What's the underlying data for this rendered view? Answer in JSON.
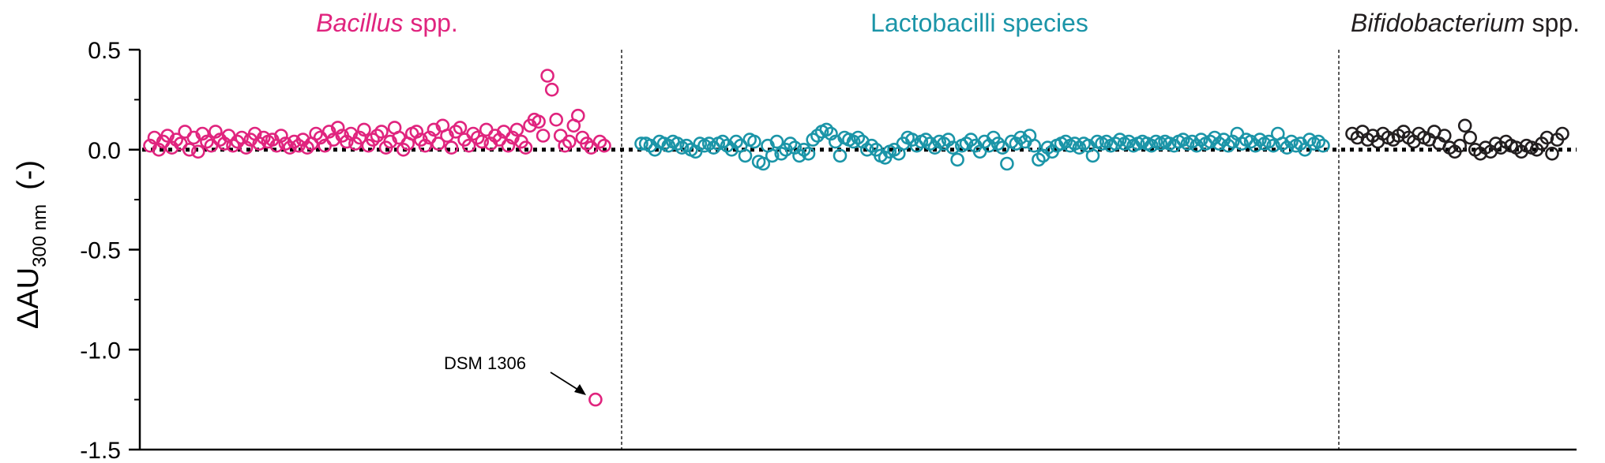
{
  "chart_data": {
    "type": "scatter",
    "ylabel_main": "ΔAU",
    "ylabel_sub": "300 nm",
    "ylabel_unit": "(-)",
    "ylim": [
      -1.5,
      0.5
    ],
    "yticks": [
      0.5,
      0.0,
      -0.5,
      -1.0,
      -1.5
    ],
    "ytick_labels": [
      "0.5",
      "0.0",
      "-0.5",
      "-1.0",
      "-1.5"
    ],
    "zero_line": true,
    "groups": [
      {
        "key": "bacillus",
        "title_italic": "Bacillus",
        "title_rest": " spp.",
        "color": "#e0247e",
        "values": [
          0.02,
          0.06,
          0.0,
          0.04,
          0.07,
          0.01,
          0.05,
          0.03,
          0.09,
          0.0,
          0.06,
          -0.01,
          0.08,
          0.04,
          0.02,
          0.09,
          0.05,
          0.03,
          0.07,
          0.02,
          0.04,
          0.06,
          0.01,
          0.05,
          0.08,
          0.03,
          0.06,
          0.04,
          0.05,
          0.02,
          0.07,
          0.03,
          0.01,
          0.04,
          0.02,
          0.05,
          0.01,
          0.03,
          0.08,
          0.06,
          0.02,
          0.09,
          0.05,
          0.11,
          0.07,
          0.04,
          0.08,
          0.03,
          0.06,
          0.1,
          0.02,
          0.05,
          0.07,
          0.09,
          0.01,
          0.04,
          0.11,
          0.06,
          0.0,
          0.03,
          0.08,
          0.09,
          0.05,
          0.02,
          0.06,
          0.1,
          0.03,
          0.12,
          0.07,
          0.01,
          0.09,
          0.11,
          0.05,
          0.02,
          0.08,
          0.06,
          0.04,
          0.1,
          0.03,
          0.07,
          0.05,
          0.09,
          0.02,
          0.06,
          0.1,
          0.04,
          0.01,
          0.12,
          0.15,
          0.14,
          0.07,
          0.37,
          0.3,
          0.15,
          0.07,
          0.02,
          0.04,
          0.12,
          0.17,
          0.06,
          0.03,
          0.01,
          -1.25,
          0.04,
          0.02
        ]
      },
      {
        "key": "lactobacilli",
        "title_italic": "",
        "title_rest": "Lactobacilli species",
        "color": "#1b95a8",
        "values": [
          0.03,
          0.03,
          0.02,
          0.0,
          0.04,
          0.03,
          0.02,
          0.04,
          0.03,
          0.01,
          0.02,
          0.0,
          -0.01,
          0.03,
          0.02,
          0.03,
          0.01,
          0.03,
          0.04,
          0.02,
          0.0,
          0.04,
          0.02,
          -0.03,
          0.05,
          0.04,
          -0.06,
          -0.07,
          0.02,
          -0.03,
          0.04,
          -0.02,
          0.0,
          0.03,
          0.01,
          -0.03,
          0.0,
          -0.02,
          0.05,
          0.07,
          0.09,
          0.1,
          0.08,
          0.04,
          -0.03,
          0.06,
          0.05,
          0.04,
          0.06,
          0.04,
          0.0,
          0.02,
          0.0,
          -0.03,
          -0.04,
          -0.01,
          0.0,
          -0.02,
          0.03,
          0.06,
          0.05,
          0.02,
          0.04,
          0.05,
          0.03,
          0.01,
          0.04,
          0.03,
          0.05,
          0.01,
          -0.05,
          0.02,
          0.03,
          0.05,
          0.02,
          -0.01,
          0.04,
          0.02,
          0.06,
          0.03,
          0.01,
          -0.07,
          0.04,
          0.03,
          0.06,
          0.04,
          0.07,
          0.02,
          -0.05,
          -0.03,
          0.01,
          -0.01,
          0.02,
          0.03,
          0.04,
          0.02,
          0.03,
          0.01,
          0.03,
          0.02,
          -0.03,
          0.04,
          0.03,
          0.04,
          0.02,
          0.03,
          0.05,
          0.03,
          0.04,
          0.02,
          0.03,
          0.04,
          0.03,
          0.02,
          0.04,
          0.03,
          0.04,
          0.03,
          0.02,
          0.04,
          0.05,
          0.03,
          0.04,
          0.02,
          0.05,
          0.03,
          0.04,
          0.06,
          0.03,
          0.05,
          0.02,
          0.04,
          0.08,
          0.03,
          0.05,
          0.04,
          0.02,
          0.05,
          0.03,
          0.04,
          0.02,
          0.08,
          0.03,
          0.01,
          0.04,
          0.02,
          0.03,
          0.0,
          0.05,
          0.03,
          0.04,
          0.02
        ]
      },
      {
        "key": "bifidobacterium",
        "title_italic": "Bifidobacterium",
        "title_rest": " spp.",
        "color": "#231f20",
        "values": [
          0.08,
          0.06,
          0.09,
          0.05,
          0.07,
          0.04,
          0.08,
          0.06,
          0.05,
          0.07,
          0.09,
          0.06,
          0.04,
          0.08,
          0.06,
          0.05,
          0.09,
          0.03,
          0.07,
          0.01,
          -0.01,
          0.02,
          0.12,
          0.06,
          0.0,
          -0.02,
          0.01,
          -0.01,
          0.03,
          0.01,
          0.04,
          0.02,
          0.01,
          -0.01,
          0.02,
          0.01,
          0.0,
          0.03,
          0.06,
          -0.02,
          0.05,
          0.08
        ]
      }
    ],
    "annotation": {
      "text": "DSM 1306",
      "target_group": "bacillus",
      "target_value": -1.25
    }
  }
}
